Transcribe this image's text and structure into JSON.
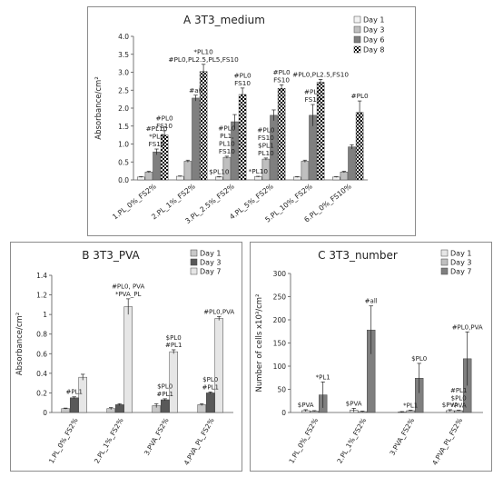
{
  "chart_data": [
    {
      "id": "A",
      "type": "bar",
      "title": "A  3T3_medium",
      "ylabel": "Absorbance/cm²",
      "ylim": [
        0,
        4.0
      ],
      "yticks": [
        "0.0",
        "0.5",
        "1.0",
        "1.5",
        "2.0",
        "2.5",
        "3.0",
        "3.5",
        "4.0"
      ],
      "grid": false,
      "legend": "top-right",
      "categories": [
        "1.PL_0%_FS2%",
        "2.PL_1%_FS2%",
        "3.PL_2.5%_FS2%",
        "4.PL_5%_FS2%",
        "5.PL_10%_FS2%",
        "6.PL_0%_FS10%"
      ],
      "series": [
        {
          "name": "Day 1",
          "color": "#f2f2f2",
          "pattern": "none",
          "values": [
            0.08,
            0.1,
            0.08,
            0.09,
            0.08,
            0.08
          ],
          "errors": [
            0.01,
            0.01,
            0.01,
            0.01,
            0.01,
            0.01
          ]
        },
        {
          "name": "Day 3",
          "color": "#bfbfbf",
          "pattern": "none",
          "values": [
            0.22,
            0.52,
            0.63,
            0.58,
            0.52,
            0.22
          ],
          "errors": [
            0.02,
            0.03,
            0.03,
            0.03,
            0.03,
            0.02
          ]
        },
        {
          "name": "Day 6",
          "color": "#7f7f7f",
          "pattern": "none",
          "values": [
            0.78,
            2.28,
            1.62,
            1.8,
            1.8,
            0.92
          ],
          "errors": [
            0.08,
            0.08,
            0.2,
            0.15,
            0.3,
            0.06
          ]
        },
        {
          "name": "Day 8",
          "color": "#000000",
          "pattern": "checker",
          "values": [
            1.25,
            3.02,
            2.38,
            2.55,
            2.72,
            1.88
          ],
          "errors": [
            0.12,
            0.2,
            0.18,
            0.1,
            0.08,
            0.32
          ]
        }
      ],
      "annotations": [
        {
          "cat": 0,
          "series": 2,
          "lines": [
            "#PL10",
            "*PL0",
            "FS10"
          ]
        },
        {
          "cat": 0,
          "series": 3,
          "lines": [
            "#PL0",
            "FS10"
          ]
        },
        {
          "cat": 1,
          "series": 2,
          "lines": [
            "#all"
          ]
        },
        {
          "cat": 1,
          "series": 3,
          "lines": [
            "*PL10",
            "#PL0,PL2.5,PL5,FS10"
          ]
        },
        {
          "cat": 2,
          "series": 0,
          "lines": [
            "$PL10"
          ]
        },
        {
          "cat": 2,
          "series": 1,
          "lines": [
            "#PL0",
            "PL1,",
            "PL10",
            "FS10"
          ]
        },
        {
          "cat": 2,
          "series": 3,
          "lines": [
            "#PL0",
            "FS10"
          ]
        },
        {
          "cat": 3,
          "series": 0,
          "lines": [
            "*PL10"
          ]
        },
        {
          "cat": 3,
          "series": 1,
          "lines": [
            "#PL0",
            "FS10",
            "$PL1",
            "PL10"
          ]
        },
        {
          "cat": 3,
          "series": 3,
          "lines": [
            "#PL0",
            "FS10"
          ]
        },
        {
          "cat": 4,
          "series": 2,
          "lines": [
            "#PL0",
            "FS10"
          ]
        },
        {
          "cat": 4,
          "series": 3,
          "lines": [
            "#PL0,PL2.5,FS10"
          ]
        },
        {
          "cat": 5,
          "series": 3,
          "lines": [
            "#PL0"
          ]
        }
      ]
    },
    {
      "id": "B",
      "type": "bar",
      "title": "B  3T3_PVA",
      "ylabel": "Absorbance/cm²",
      "ylim": [
        0,
        1.4
      ],
      "yticks": [
        "0",
        "0.2",
        "0.4",
        "0.6",
        "0.8",
        "1",
        "1.2",
        "1.4"
      ],
      "grid": false,
      "legend": "top-right",
      "categories": [
        "1.PL_0%_FS2%",
        "2.PL_1%_FS2%",
        "3.PVA_FS2%",
        "4.PVA_PL_FS2%"
      ],
      "series": [
        {
          "name": "Day 1",
          "color": "#c8c8c8",
          "pattern": "none",
          "values": [
            0.04,
            0.04,
            0.07,
            0.08
          ],
          "errors": [
            0.005,
            0.01,
            0.02,
            0.01
          ]
        },
        {
          "name": "Day 3",
          "color": "#595959",
          "pattern": "none",
          "values": [
            0.15,
            0.08,
            0.13,
            0.2
          ],
          "errors": [
            0.01,
            0.01,
            0.01,
            0.01
          ]
        },
        {
          "name": "Day 7",
          "color": "#e6e6e6",
          "pattern": "none",
          "values": [
            0.36,
            1.08,
            0.62,
            0.96
          ],
          "errors": [
            0.03,
            0.08,
            0.02,
            0.02
          ]
        }
      ],
      "annotations": [
        {
          "cat": 0,
          "series": 1,
          "lines": [
            "#PL1"
          ]
        },
        {
          "cat": 1,
          "series": 2,
          "lines": [
            "#PL0, PVA",
            "*PVA_PL"
          ]
        },
        {
          "cat": 2,
          "series": 1,
          "lines": [
            "$PL0",
            "#PL1"
          ]
        },
        {
          "cat": 2,
          "series": 2,
          "lines": [
            "$PL0",
            "#PL1"
          ]
        },
        {
          "cat": 3,
          "series": 1,
          "lines": [
            "$PL0",
            "#PL1"
          ]
        },
        {
          "cat": 3,
          "series": 2,
          "lines": [
            "#PL0,PVA"
          ]
        }
      ]
    },
    {
      "id": "C",
      "type": "bar",
      "title": "C  3T3_number",
      "ylabel": "Number of cells x10³/cm²",
      "ylim": [
        0,
        300
      ],
      "yticks": [
        "0",
        "50",
        "100",
        "150",
        "200",
        "250",
        "300"
      ],
      "grid": false,
      "legend": "top-right",
      "categories": [
        "1.PL_0%_FS2%",
        "2.PL_1%_FS2%",
        "3.PVA_FS2%",
        "4.PVA_PL_FS2%"
      ],
      "series": [
        {
          "name": "Day 1",
          "color": "#e6e6e6",
          "pattern": "none",
          "values": [
            4,
            5,
            1,
            4
          ],
          "errors": [
            2,
            4,
            1,
            2
          ]
        },
        {
          "name": "Day 3",
          "color": "#bfbfbf",
          "pattern": "none",
          "values": [
            3,
            2,
            4,
            4
          ],
          "errors": [
            1,
            1,
            1,
            1
          ]
        },
        {
          "name": "Day 7",
          "color": "#7f7f7f",
          "pattern": "none",
          "values": [
            38,
            178,
            74,
            116
          ],
          "errors": [
            28,
            52,
            32,
            58
          ]
        }
      ],
      "annotations": [
        {
          "cat": 0,
          "series": 0,
          "lines": [
            "$PVA"
          ]
        },
        {
          "cat": 0,
          "series": 2,
          "lines": [
            "*PL1"
          ]
        },
        {
          "cat": 1,
          "series": 0,
          "lines": [
            "$PVA"
          ]
        },
        {
          "cat": 1,
          "series": 2,
          "lines": [
            "#all"
          ]
        },
        {
          "cat": 2,
          "series": 1,
          "lines": [
            "*PL1"
          ]
        },
        {
          "cat": 2,
          "series": 2,
          "lines": [
            "$PL0"
          ]
        },
        {
          "cat": 3,
          "series": 0,
          "lines": [
            "$PVA"
          ]
        },
        {
          "cat": 3,
          "series": 1,
          "lines": [
            "#PL1",
            "$PL0",
            "*PVA"
          ]
        },
        {
          "cat": 3,
          "series": 2,
          "lines": [
            "#PL0,PVA"
          ]
        }
      ]
    }
  ]
}
